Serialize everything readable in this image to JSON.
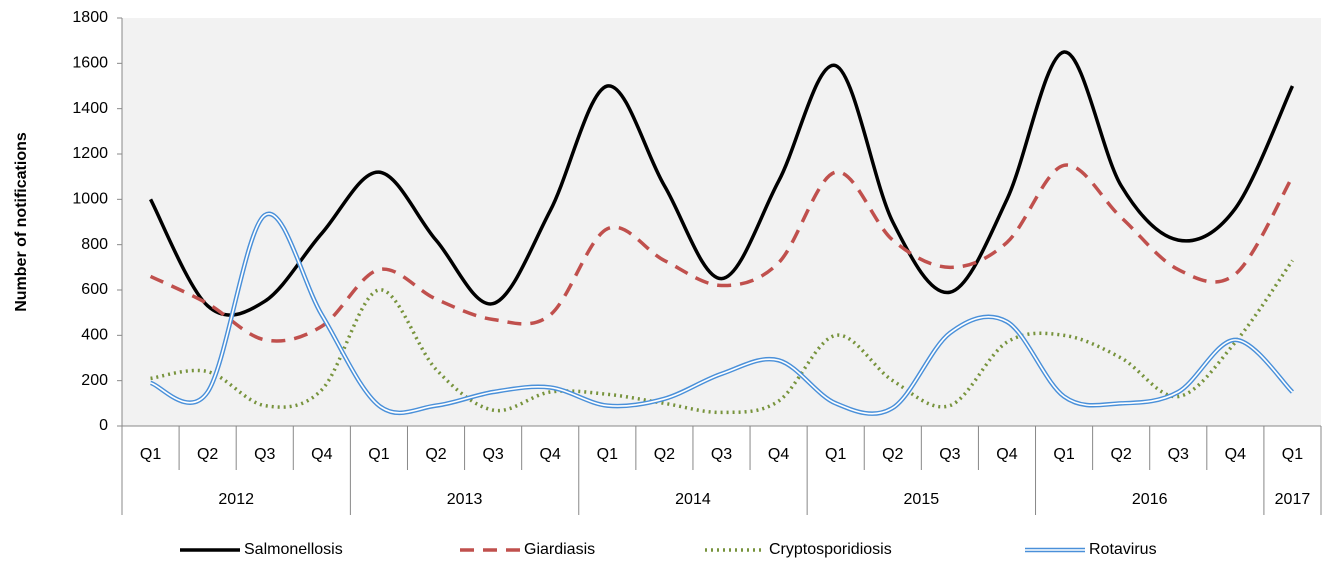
{
  "chart_data": {
    "type": "line",
    "y_label": "Number of notifications",
    "groups": [
      {
        "name": "2012",
        "categories": [
          "Q1",
          "Q2",
          "Q3",
          "Q4"
        ]
      },
      {
        "name": "2013",
        "categories": [
          "Q1",
          "Q2",
          "Q3",
          "Q4"
        ]
      },
      {
        "name": "2014",
        "categories": [
          "Q1",
          "Q2",
          "Q3",
          "Q4"
        ]
      },
      {
        "name": "2015",
        "categories": [
          "Q1",
          "Q2",
          "Q3",
          "Q4"
        ]
      },
      {
        "name": "2016",
        "categories": [
          "Q1",
          "Q2",
          "Q3",
          "Q4"
        ]
      },
      {
        "name": "2017",
        "categories": [
          "Q1"
        ]
      }
    ],
    "ylim": [
      0,
      1800
    ],
    "yticks": [
      0,
      200,
      400,
      600,
      800,
      1000,
      1200,
      1400,
      1600,
      1800
    ],
    "smooth": true,
    "series": [
      {
        "name": "Salmonellosis",
        "color": "#000000",
        "style": "solid",
        "values": [
          1000,
          530,
          550,
          850,
          1120,
          820,
          540,
          950,
          1500,
          1060,
          650,
          1080,
          1590,
          900,
          590,
          1000,
          1650,
          1060,
          820,
          960,
          1500
        ]
      },
      {
        "name": "Giardiasis",
        "color": "#c0504d",
        "style": "dashed",
        "values": [
          660,
          540,
          380,
          440,
          690,
          560,
          470,
          490,
          870,
          730,
          620,
          720,
          1120,
          820,
          700,
          810,
          1150,
          920,
          690,
          670,
          1100
        ]
      },
      {
        "name": "Cryptosporidiosis",
        "color": "#77933c",
        "style": "dotted",
        "values": [
          210,
          240,
          90,
          160,
          600,
          250,
          70,
          150,
          140,
          100,
          60,
          110,
          400,
          200,
          90,
          370,
          400,
          300,
          130,
          370,
          730
        ]
      },
      {
        "name": "Rotavirus",
        "color": "#4a90d9",
        "style": "double",
        "values": [
          190,
          150,
          930,
          490,
          90,
          90,
          150,
          170,
          90,
          120,
          230,
          290,
          100,
          80,
          410,
          460,
          130,
          100,
          150,
          380,
          150
        ]
      }
    ]
  }
}
